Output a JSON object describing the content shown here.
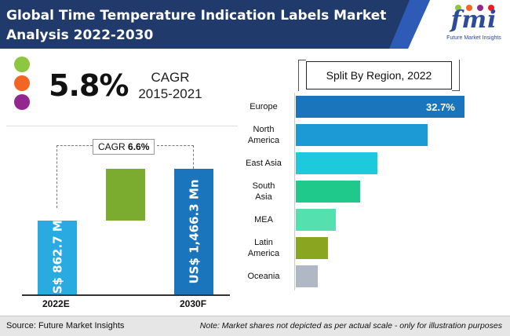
{
  "header": {
    "title_line1": "Global Time Temperature Indication Labels Market",
    "title_line2": "Analysis 2022-2030",
    "logo_text": "fmi",
    "logo_tagline": "Future Market Insights"
  },
  "colors": {
    "header_bg": "#1f3a6b",
    "header_accent": "#2e5bb5",
    "dot1": "#8dc63f",
    "dot2": "#f26522",
    "dot3": "#92278f"
  },
  "cagr_summary": {
    "value": "5.8%",
    "label_line1": "CAGR",
    "label_line2": "2015-2021"
  },
  "footer": {
    "source": "Source: Future Market Insights",
    "note": "Note: Market shares not depicted as per actual scale - only for illustration purposes"
  },
  "chart_data": [
    {
      "type": "bar",
      "title": "",
      "categories": [
        "2022E",
        "2030F"
      ],
      "values": [
        862.7,
        1466.3
      ],
      "value_labels": [
        "US$ 862.7 Mn",
        "US$ 1,466.3 Mn"
      ],
      "units": "US$ Mn",
      "colors": [
        "#29abe2",
        "#1b75bc"
      ],
      "bridge": {
        "color": "#7cac2f",
        "note": "growth increment"
      },
      "annotation": {
        "prefix": "CAGR",
        "value": "6.6%"
      },
      "grid": false
    },
    {
      "type": "bar",
      "orientation": "horizontal",
      "title": "Split By Region, 2022",
      "categories": [
        "Europe",
        "North America",
        "East Asia",
        "South Asia",
        "MEA",
        "Latin America",
        "Oceania"
      ],
      "category_lines": [
        [
          "Europe"
        ],
        [
          "North",
          "America"
        ],
        [
          "East Asia"
        ],
        [
          "South",
          "Asia"
        ],
        [
          "MEA"
        ],
        [
          "Latin",
          "America"
        ],
        [
          "Oceania"
        ]
      ],
      "values": [
        32.7,
        25.6,
        15.8,
        12.5,
        7.8,
        6.3,
        4.3
      ],
      "value_labels": [
        "32.7%",
        "",
        "",
        "",
        "",
        "",
        ""
      ],
      "units": "%",
      "colors": [
        "#1b75bc",
        "#1c9ad6",
        "#1fc9dd",
        "#1fc98c",
        "#55e0b0",
        "#8aa51f",
        "#b0b8c6"
      ],
      "grid": false
    }
  ]
}
